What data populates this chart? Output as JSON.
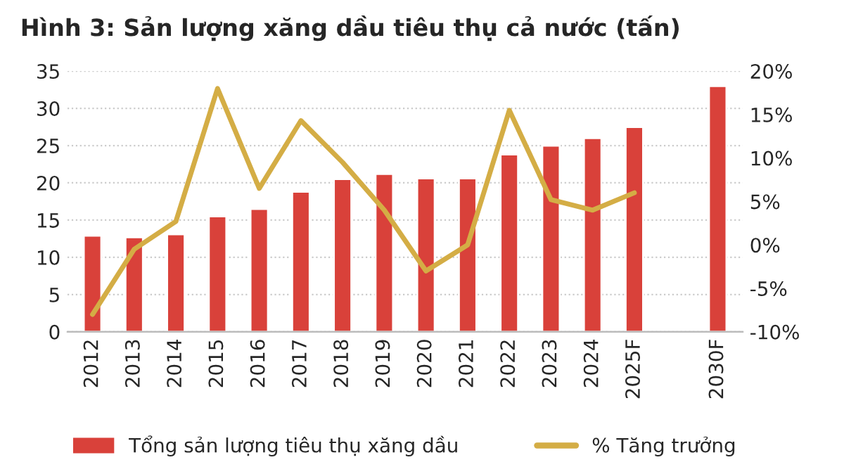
{
  "chart_data": {
    "type": "bar",
    "title": "Hình 3: Sản lượng xăng dầu tiêu thụ cả nước (tấn)",
    "categories": [
      "2012",
      "2013",
      "2014",
      "2015",
      "2016",
      "2017",
      "2018",
      "2019",
      "2020",
      "2021",
      "2022",
      "2023",
      "2024",
      "2025F",
      null,
      "2030F"
    ],
    "series": [
      {
        "name": "Tổng sản lượng tiêu thụ xăng dầu",
        "color": "#d9413a",
        "values": [
          12.9,
          12.7,
          13.1,
          15.5,
          16.5,
          18.8,
          20.5,
          21.2,
          20.6,
          20.6,
          23.8,
          25.0,
          26.0,
          27.5,
          null,
          33.0
        ]
      },
      {
        "name": "% Tăng trưởng",
        "type": "line",
        "axis": "y2",
        "color": "#d4ad45",
        "values": [
          -8.0,
          -0.5,
          2.7,
          18.0,
          6.5,
          14.3,
          9.5,
          4.0,
          -3.0,
          0.0,
          15.5,
          5.2,
          4.0,
          6.0,
          null,
          null
        ]
      }
    ],
    "ylim": [
      0,
      35
    ],
    "yticks": [
      0,
      5,
      10,
      15,
      20,
      25,
      30,
      35
    ],
    "y2lim": [
      -10,
      20
    ],
    "y2ticks": [
      {
        "value": -10,
        "label": "-10%"
      },
      {
        "value": -5,
        "label": "-5%"
      },
      {
        "value": 0,
        "label": "0%"
      },
      {
        "value": 5,
        "label": "5%"
      },
      {
        "value": 10,
        "label": "10%"
      },
      {
        "value": 15,
        "label": "15%"
      },
      {
        "value": 20,
        "label": "20%"
      }
    ],
    "grid": "y",
    "legend": "bottom"
  }
}
